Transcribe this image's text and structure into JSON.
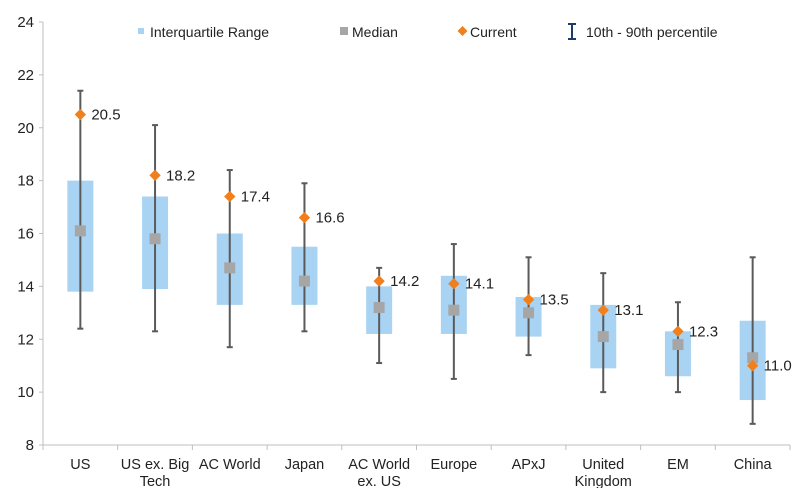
{
  "chart_data": {
    "type": "box",
    "ylim": [
      8,
      24
    ],
    "yticks": [
      8,
      10,
      12,
      14,
      16,
      18,
      20,
      22,
      24
    ],
    "grid": false,
    "legend": {
      "placement": "top",
      "entries": [
        {
          "key": "iqr",
          "label": "Interquartile Range",
          "color": "#a9d3f3"
        },
        {
          "key": "median",
          "label": "Median",
          "color": "#a6a6a6"
        },
        {
          "key": "current",
          "label": "Current",
          "color": "#f07f1c"
        },
        {
          "key": "whisker",
          "label": "10th - 90th percentile",
          "color": "#1f3a6b"
        }
      ]
    },
    "colors": {
      "iqr": "#a9d3f3",
      "median": "#a6a6a6",
      "current": "#f07f1c",
      "whisker": "#5a5a5a",
      "axis": "#bfbfbf"
    },
    "categories": [
      {
        "lines": [
          "US"
        ],
        "p10": 12.4,
        "q1": 13.8,
        "median": 16.1,
        "q3": 18.0,
        "p90": 21.4,
        "current": 20.5,
        "current_label": "20.5"
      },
      {
        "lines": [
          "US ex. Big",
          "Tech"
        ],
        "p10": 12.3,
        "q1": 13.9,
        "median": 15.8,
        "q3": 17.4,
        "p90": 20.1,
        "current": 18.2,
        "current_label": "18.2"
      },
      {
        "lines": [
          "AC World"
        ],
        "p10": 11.7,
        "q1": 13.3,
        "median": 14.7,
        "q3": 16.0,
        "p90": 18.4,
        "current": 17.4,
        "current_label": "17.4"
      },
      {
        "lines": [
          "Japan"
        ],
        "p10": 12.3,
        "q1": 13.3,
        "median": 14.2,
        "q3": 15.5,
        "p90": 17.9,
        "current": 16.6,
        "current_label": "16.6"
      },
      {
        "lines": [
          "AC World",
          "ex. US"
        ],
        "p10": 11.1,
        "q1": 12.2,
        "median": 13.2,
        "q3": 14.0,
        "p90": 14.7,
        "current": 14.2,
        "current_label": "14.2"
      },
      {
        "lines": [
          "Europe"
        ],
        "p10": 10.5,
        "q1": 12.2,
        "median": 13.1,
        "q3": 14.4,
        "p90": 15.6,
        "current": 14.1,
        "current_label": "14.1"
      },
      {
        "lines": [
          "APxJ"
        ],
        "p10": 11.4,
        "q1": 12.1,
        "median": 13.0,
        "q3": 13.6,
        "p90": 15.1,
        "current": 13.5,
        "current_label": "13.5"
      },
      {
        "lines": [
          "United",
          "Kingdom"
        ],
        "p10": 10.0,
        "q1": 10.9,
        "median": 12.1,
        "q3": 13.3,
        "p90": 14.5,
        "current": 13.1,
        "current_label": "13.1"
      },
      {
        "lines": [
          "EM"
        ],
        "p10": 10.0,
        "q1": 10.6,
        "median": 11.8,
        "q3": 12.3,
        "p90": 13.4,
        "current": 12.3,
        "current_label": "12.3"
      },
      {
        "lines": [
          "China"
        ],
        "p10": 8.8,
        "q1": 9.7,
        "median": 11.3,
        "q3": 12.7,
        "p90": 15.1,
        "current": 11.0,
        "current_label": "11.0"
      }
    ]
  }
}
